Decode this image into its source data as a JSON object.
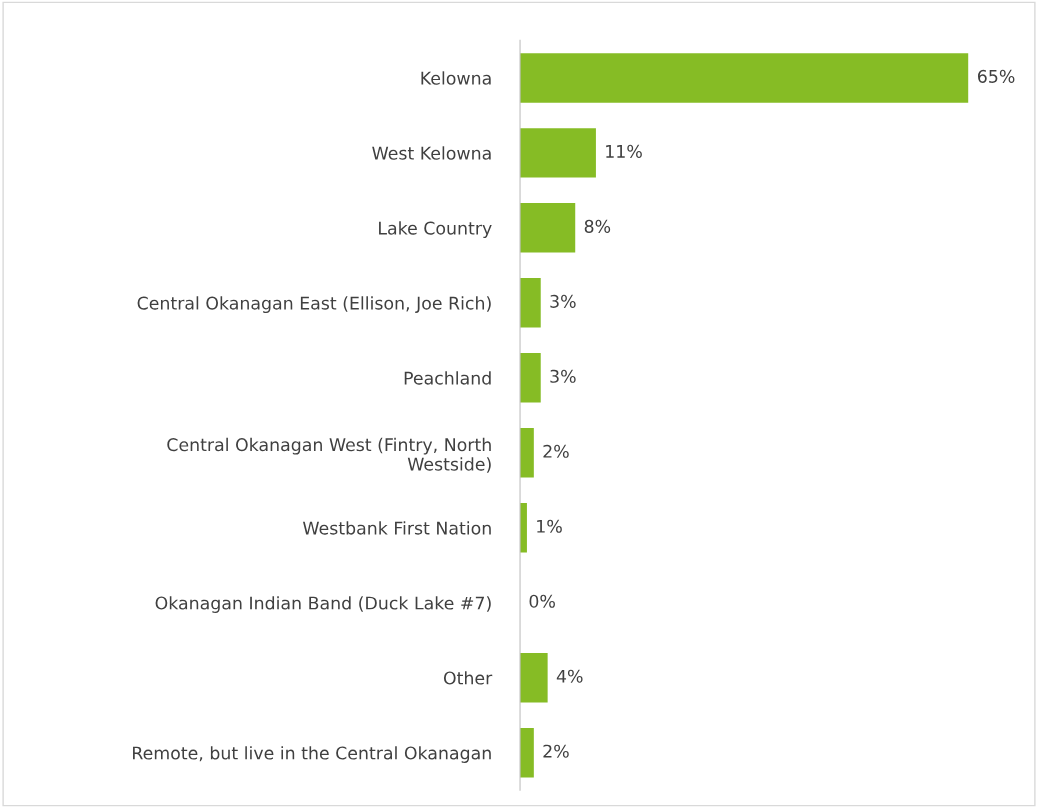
{
  "chart_data": {
    "type": "bar",
    "orientation": "horizontal",
    "categories": [
      "Kelowna",
      "West Kelowna",
      "Lake Country",
      "Central Okanagan East (Ellison, Joe Rich)",
      "Peachland",
      "Central Okanagan West (Fintry, North\nWestside)",
      "Westbank First Nation",
      "Okanagan Indian Band (Duck Lake #7)",
      "Other",
      "Remote, but live in the Central Okanagan"
    ],
    "values": [
      65,
      11,
      8,
      3,
      3,
      2,
      1,
      0,
      4,
      2
    ],
    "value_labels": [
      "65%",
      "11%",
      "8%",
      "3%",
      "3%",
      "2%",
      "1%",
      "0%",
      "4%",
      "2%"
    ],
    "color": "#86bc25",
    "grid": false,
    "legend": false
  }
}
